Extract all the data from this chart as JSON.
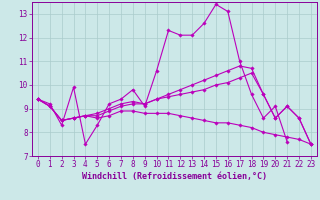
{
  "xlabel": "Windchill (Refroidissement éolien,°C)",
  "xlim": [
    -0.5,
    23.5
  ],
  "ylim": [
    7,
    13.5
  ],
  "xticks": [
    0,
    1,
    2,
    3,
    4,
    5,
    6,
    7,
    8,
    9,
    10,
    11,
    12,
    13,
    14,
    15,
    16,
    17,
    18,
    19,
    20,
    21,
    22,
    23
  ],
  "yticks": [
    7,
    8,
    9,
    10,
    11,
    12,
    13
  ],
  "background_color": "#cce8e8",
  "grid_color": "#aacccc",
  "line_color": "#bb00bb",
  "series": [
    {
      "x": [
        0,
        1,
        2,
        3,
        4,
        5,
        6,
        7,
        8,
        9,
        10,
        11,
        12,
        13,
        14,
        15,
        16,
        17,
        18,
        19,
        20,
        21
      ],
      "y": [
        9.4,
        9.2,
        8.3,
        9.9,
        7.5,
        8.3,
        9.2,
        9.4,
        9.8,
        9.1,
        10.6,
        12.3,
        12.1,
        12.1,
        12.6,
        13.4,
        13.1,
        11.0,
        9.6,
        8.6,
        9.1,
        7.6
      ]
    },
    {
      "x": [
        0,
        1,
        2,
        3,
        4,
        5,
        6,
        7,
        8,
        9,
        10,
        11,
        12,
        13,
        14,
        15,
        16,
        17,
        18,
        19,
        20,
        21,
        22,
        23
      ],
      "y": [
        9.4,
        9.1,
        8.5,
        8.6,
        8.7,
        8.6,
        8.7,
        8.9,
        8.9,
        8.8,
        8.8,
        8.8,
        8.7,
        8.6,
        8.5,
        8.4,
        8.4,
        8.3,
        8.2,
        8.0,
        7.9,
        7.8,
        7.7,
        7.5
      ]
    },
    {
      "x": [
        0,
        1,
        2,
        3,
        4,
        5,
        6,
        7,
        8,
        9,
        10,
        11,
        12,
        13,
        14,
        15,
        16,
        17,
        18,
        19,
        20,
        21,
        22,
        23
      ],
      "y": [
        9.4,
        9.1,
        8.5,
        8.6,
        8.7,
        8.7,
        8.9,
        9.1,
        9.2,
        9.2,
        9.4,
        9.5,
        9.6,
        9.7,
        9.8,
        10.0,
        10.1,
        10.3,
        10.5,
        9.6,
        8.6,
        9.1,
        8.6,
        7.5
      ]
    },
    {
      "x": [
        0,
        1,
        2,
        3,
        4,
        5,
        6,
        7,
        8,
        9,
        10,
        11,
        12,
        13,
        14,
        15,
        16,
        17,
        18,
        19,
        20,
        21,
        22,
        23
      ],
      "y": [
        9.4,
        9.1,
        8.5,
        8.6,
        8.7,
        8.8,
        9.0,
        9.2,
        9.3,
        9.2,
        9.4,
        9.6,
        9.8,
        10.0,
        10.2,
        10.4,
        10.6,
        10.8,
        10.7,
        9.6,
        8.6,
        9.1,
        8.6,
        7.5
      ]
    }
  ],
  "font_color": "#880099",
  "tick_fontsize": 5.5,
  "label_fontsize": 6
}
